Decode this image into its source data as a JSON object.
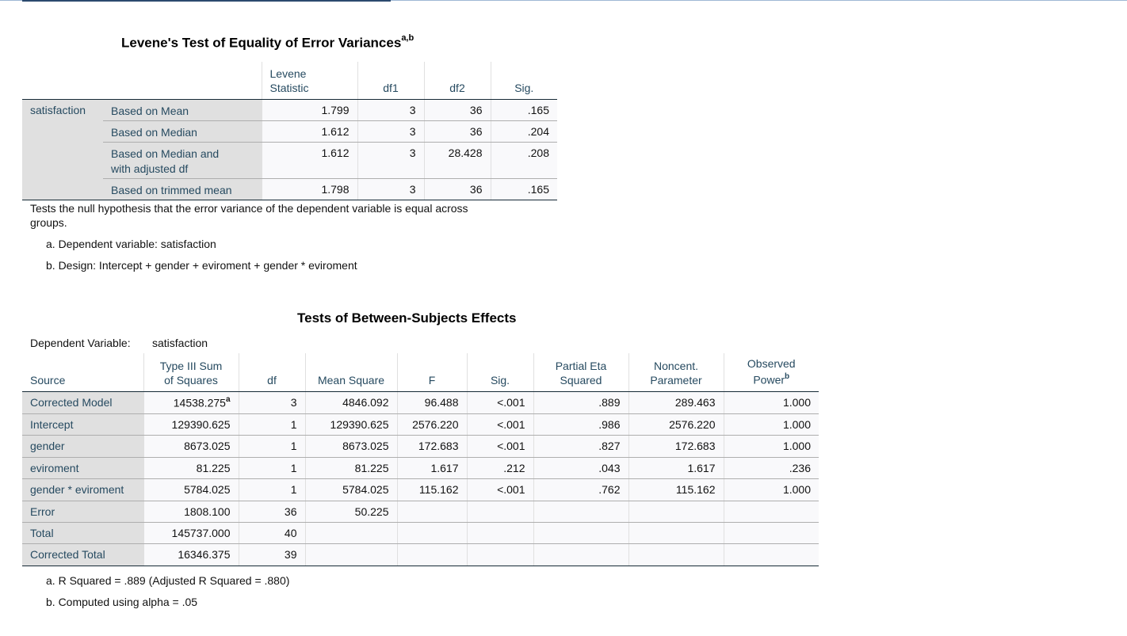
{
  "levene": {
    "title": "Levene's Test of Equality of Error Variances",
    "title_sup": "a,b",
    "headers": [
      "Levene Statistic",
      "df1",
      "df2",
      "Sig."
    ],
    "header_line1": "Levene",
    "header_line2": "Statistic",
    "variable": "satisfaction",
    "rows": [
      {
        "label": "Based on Mean",
        "stat": "1.799",
        "df1": "3",
        "df2": "36",
        "sig": ".165"
      },
      {
        "label": "Based on Median",
        "stat": "1.612",
        "df1": "3",
        "df2": "36",
        "sig": ".204"
      },
      {
        "label_line1": "Based on Median and",
        "label_line2": "with adjusted df",
        "stat": "1.612",
        "df1": "3",
        "df2": "28.428",
        "sig": ".208"
      },
      {
        "label": "Based on trimmed mean",
        "stat": "1.798",
        "df1": "3",
        "df2": "36",
        "sig": ".165"
      }
    ],
    "caption_line1": "Tests the null hypothesis that the error variance of the dependent variable is equal across",
    "caption_line2": "groups.",
    "footnote_a": "a. Dependent variable: satisfaction",
    "footnote_b": "b. Design: Intercept + gender + eviroment + gender * eviroment"
  },
  "effects": {
    "title": "Tests of Between-Subjects Effects",
    "dependent_label": "Dependent Variable:",
    "dependent_value": "satisfaction",
    "headers": {
      "source": "Source",
      "ss_line1": "Type III Sum",
      "ss_line2": "of Squares",
      "df": "df",
      "ms": "Mean Square",
      "f": "F",
      "sig": "Sig.",
      "eta_line1": "Partial Eta",
      "eta_line2": "Squared",
      "nc_line1": "Noncent.",
      "nc_line2": "Parameter",
      "power_line1": "Observed",
      "power_line2": "Power",
      "power_sup": "b"
    },
    "rows": [
      {
        "source": "Corrected Model",
        "ss": "14538.275",
        "ss_sup": "a",
        "df": "3",
        "ms": "4846.092",
        "f": "96.488",
        "sig": "<.001",
        "eta": ".889",
        "nc": "289.463",
        "power": "1.000"
      },
      {
        "source": "Intercept",
        "ss": "129390.625",
        "df": "1",
        "ms": "129390.625",
        "f": "2576.220",
        "sig": "<.001",
        "eta": ".986",
        "nc": "2576.220",
        "power": "1.000"
      },
      {
        "source": "gender",
        "ss": "8673.025",
        "df": "1",
        "ms": "8673.025",
        "f": "172.683",
        "sig": "<.001",
        "eta": ".827",
        "nc": "172.683",
        "power": "1.000"
      },
      {
        "source": "eviroment",
        "ss": "81.225",
        "df": "1",
        "ms": "81.225",
        "f": "1.617",
        "sig": ".212",
        "eta": ".043",
        "nc": "1.617",
        "power": ".236"
      },
      {
        "source": "gender * eviroment",
        "ss": "5784.025",
        "df": "1",
        "ms": "5784.025",
        "f": "115.162",
        "sig": "<.001",
        "eta": ".762",
        "nc": "115.162",
        "power": "1.000"
      },
      {
        "source": "Error",
        "ss": "1808.100",
        "df": "36",
        "ms": "50.225",
        "f": "",
        "sig": "",
        "eta": "",
        "nc": "",
        "power": ""
      },
      {
        "source": "Total",
        "ss": "145737.000",
        "df": "40",
        "ms": "",
        "f": "",
        "sig": "",
        "eta": "",
        "nc": "",
        "power": ""
      },
      {
        "source": "Corrected Total",
        "ss": "16346.375",
        "df": "39",
        "ms": "",
        "f": "",
        "sig": "",
        "eta": "",
        "nc": "",
        "power": ""
      }
    ],
    "footnote_a": "a. R Squared = .889 (Adjusted R Squared = .880)",
    "footnote_b": "b. Computed using alpha = .05"
  }
}
